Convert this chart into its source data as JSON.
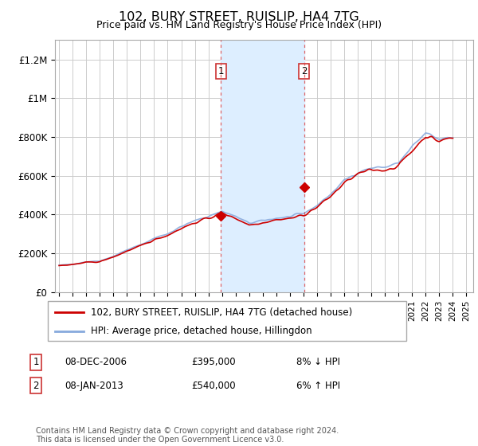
{
  "title": "102, BURY STREET, RUISLIP, HA4 7TG",
  "subtitle": "Price paid vs. HM Land Registry's House Price Index (HPI)",
  "footnote": "Contains HM Land Registry data © Crown copyright and database right 2024.\nThis data is licensed under the Open Government Licence v3.0.",
  "legend_line1": "102, BURY STREET, RUISLIP, HA4 7TG (detached house)",
  "legend_line2": "HPI: Average price, detached house, Hillingdon",
  "transaction1_date": "08-DEC-2006",
  "transaction1_price": "£395,000",
  "transaction1_hpi": "8% ↓ HPI",
  "transaction2_date": "08-JAN-2013",
  "transaction2_price": "£540,000",
  "transaction2_hpi": "6% ↑ HPI",
  "hpi_color": "#88aadd",
  "price_color": "#cc0000",
  "shade_color": "#ddeeff",
  "marker_color": "#cc0000",
  "transaction1_x": 2006.917,
  "transaction1_y": 395000,
  "transaction2_x": 2013.042,
  "transaction2_y": 540000,
  "shade_x1": 2006.917,
  "shade_x2": 2013.042,
  "ylim": [
    0,
    1300000
  ],
  "yticks": [
    0,
    200000,
    400000,
    600000,
    800000,
    1000000,
    1200000
  ],
  "ytick_labels": [
    "£0",
    "£200K",
    "£400K",
    "£600K",
    "£800K",
    "£1M",
    "£1.2M"
  ],
  "xlim_left": 1994.7,
  "xlim_right": 2025.5
}
